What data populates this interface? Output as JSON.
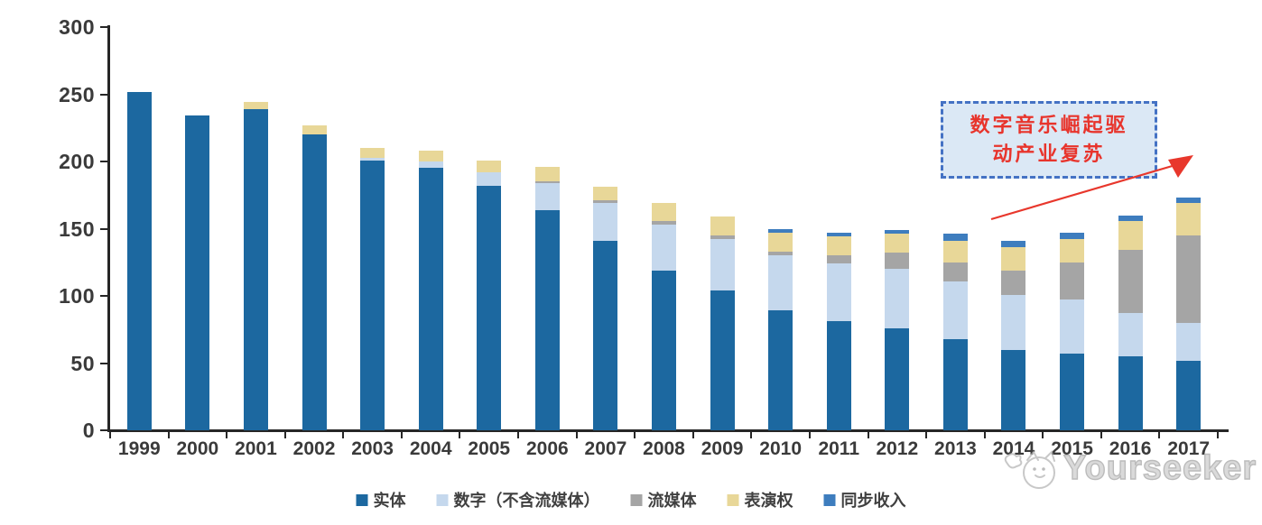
{
  "chart_data": {
    "type": "bar",
    "variant": "stacked-vertical",
    "categories": [
      "1999",
      "2000",
      "2001",
      "2002",
      "2003",
      "2004",
      "2005",
      "2006",
      "2007",
      "2008",
      "2009",
      "2010",
      "2011",
      "2012",
      "2013",
      "2014",
      "2015",
      "2016",
      "2017"
    ],
    "series": [
      {
        "name": "实体",
        "color": "#1c68a0",
        "values": [
          252,
          234,
          239,
          220,
          201,
          195,
          182,
          164,
          141,
          119,
          104,
          89,
          81,
          76,
          68,
          60,
          57,
          55,
          52
        ]
      },
      {
        "name": "数字（不含流媒体）",
        "color": "#c5d8ed",
        "values": [
          0,
          0,
          0,
          0,
          2,
          5,
          10,
          20,
          28,
          34,
          38,
          41,
          43,
          44,
          43,
          41,
          40,
          32,
          28
        ]
      },
      {
        "name": "流媒体",
        "color": "#a5a5a5",
        "values": [
          0,
          0,
          0,
          0,
          0,
          0,
          0,
          1,
          2,
          3,
          3,
          3,
          6,
          12,
          14,
          18,
          28,
          47,
          65
        ]
      },
      {
        "name": "表演权",
        "color": "#e8d798",
        "values": [
          0,
          0,
          5,
          7,
          7,
          8,
          9,
          11,
          10,
          13,
          14,
          14,
          14,
          14,
          16,
          17,
          17,
          22,
          24
        ]
      },
      {
        "name": "同步收入",
        "color": "#3e7dbe",
        "values": [
          0,
          0,
          0,
          0,
          0,
          0,
          0,
          0,
          0,
          0,
          0,
          3,
          3,
          3,
          5,
          5,
          5,
          4,
          4
        ]
      }
    ],
    "ylim": [
      0,
      300
    ],
    "yticks": [
      0,
      50,
      100,
      150,
      200,
      250,
      300
    ],
    "grid": "off",
    "legend_position": "bottom",
    "title": "",
    "xlabel": "",
    "ylabel": ""
  },
  "annotation": {
    "line1": "数字音乐崛起驱",
    "line2": "动产业复苏",
    "arrow_color": "#e8372c"
  },
  "watermark": {
    "brand": "Yourseeker"
  }
}
